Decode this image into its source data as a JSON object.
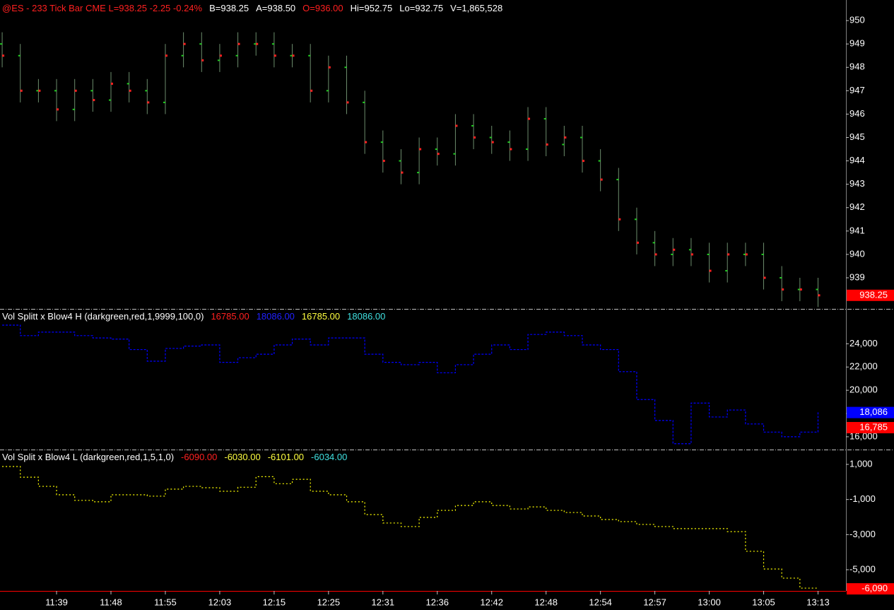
{
  "chart_data": [
    {
      "type": "ohlc",
      "header": [
        {
          "text": "@ES - 233 Tick Bar  CME  L=938.25  -2.25  -0.24%",
          "color": "#ff2020"
        },
        {
          "text": "B=938.25",
          "color": "#ffffff"
        },
        {
          "text": "A=938.50",
          "color": "#ffffff"
        },
        {
          "text": "O=936.00",
          "color": "#ff2020"
        },
        {
          "text": "Hi=952.75",
          "color": "#ffffff"
        },
        {
          "text": "Lo=932.75",
          "color": "#ffffff"
        },
        {
          "text": "V=1,865,528",
          "color": "#ffffff"
        }
      ],
      "x": [
        0,
        5,
        10,
        15,
        20,
        25,
        30,
        35,
        40,
        45,
        50,
        55,
        60,
        65,
        70,
        75,
        80,
        85,
        90,
        95,
        100,
        105,
        110,
        115,
        120,
        125,
        130,
        135,
        140,
        145,
        150,
        155,
        160,
        165,
        170,
        175,
        180,
        185,
        190,
        195,
        200,
        205,
        210,
        215,
        220,
        225
      ],
      "open": [
        949.0,
        948.5,
        947.0,
        947.0,
        946.2,
        947.0,
        946.6,
        947.3,
        947.0,
        946.5,
        948.5,
        949.0,
        948.3,
        948.5,
        949.0,
        949.0,
        948.5,
        948.5,
        947.0,
        948.0,
        946.5,
        944.8,
        944.0,
        943.5,
        944.5,
        944.3,
        945.5,
        945.0,
        944.8,
        944.5,
        945.8,
        944.7,
        945.0,
        944.0,
        943.2,
        941.5,
        940.5,
        940.0,
        940.2,
        940.0,
        939.3,
        940.0,
        940.0,
        939.0,
        938.5,
        938.5
      ],
      "high": [
        949.5,
        949.0,
        947.5,
        947.5,
        947.5,
        947.5,
        947.8,
        947.8,
        947.5,
        949.0,
        949.5,
        949.5,
        949.0,
        949.5,
        949.5,
        949.5,
        949.0,
        949.0,
        948.5,
        948.5,
        947.0,
        945.3,
        944.5,
        945.0,
        945.0,
        946.0,
        946.0,
        945.5,
        945.3,
        946.3,
        946.3,
        945.5,
        945.5,
        944.5,
        943.7,
        942.0,
        941.0,
        940.7,
        940.7,
        940.5,
        940.5,
        940.5,
        940.5,
        939.5,
        939.0,
        939.0
      ],
      "low": [
        948.0,
        946.5,
        946.5,
        945.7,
        945.7,
        946.1,
        946.1,
        946.5,
        946.0,
        946.0,
        948.0,
        947.8,
        947.8,
        948.0,
        948.5,
        948.0,
        948.0,
        946.5,
        946.5,
        946.0,
        944.3,
        943.5,
        943.0,
        943.0,
        943.8,
        943.8,
        944.5,
        944.3,
        944.0,
        944.0,
        944.2,
        944.2,
        943.5,
        942.7,
        941.0,
        940.0,
        939.5,
        939.5,
        939.5,
        938.8,
        938.8,
        939.5,
        938.5,
        938.0,
        938.0,
        937.75
      ],
      "close": [
        948.5,
        947.0,
        947.0,
        946.2,
        947.0,
        946.6,
        947.3,
        947.0,
        946.5,
        948.5,
        949.0,
        948.3,
        948.5,
        949.0,
        949.0,
        948.5,
        948.5,
        947.0,
        948.0,
        946.5,
        944.8,
        944.0,
        943.5,
        944.5,
        944.3,
        945.5,
        945.0,
        944.8,
        944.5,
        945.8,
        944.7,
        945.0,
        944.0,
        943.2,
        941.5,
        940.5,
        940.0,
        940.2,
        940.0,
        939.3,
        940.0,
        940.0,
        939.0,
        938.5,
        938.5,
        938.25
      ],
      "bar_color": "#6c8c6c",
      "open_color": "#22cc22",
      "close_color": "#ff2020",
      "xlim": [
        -0.6,
        232.7
      ],
      "ylim": [
        937.67,
        950.88
      ],
      "yticks": [
        939,
        940,
        941,
        942,
        943,
        944,
        945,
        946,
        947,
        948,
        949,
        950
      ],
      "last_labels": [
        {
          "value": 938.25,
          "label": "938.25",
          "color": "#ff0000"
        }
      ]
    },
    {
      "type": "step",
      "header": [
        {
          "text": "Vol Splitt x Blow4 H (darkgreen,red,1,9999,100,0)",
          "color": "#ffffff"
        },
        {
          "text": "16785.00",
          "color": "#ff2020"
        },
        {
          "text": "18086.00",
          "color": "#2020ff"
        },
        {
          "text": "16785.00",
          "color": "#ffff40"
        },
        {
          "text": "18086.00",
          "color": "#40e0e0"
        }
      ],
      "x": [
        0,
        5,
        10,
        15,
        20,
        25,
        30,
        35,
        40,
        45,
        50,
        55,
        60,
        65,
        70,
        75,
        80,
        85,
        90,
        95,
        100,
        105,
        110,
        115,
        120,
        125,
        130,
        135,
        140,
        145,
        150,
        155,
        160,
        165,
        170,
        175,
        180,
        185,
        190,
        195,
        200,
        205,
        210,
        215,
        220,
        225
      ],
      "values": [
        25600,
        24700,
        25000,
        25000,
        24700,
        24500,
        24400,
        23500,
        22500,
        23600,
        23800,
        23900,
        22400,
        22800,
        23100,
        23900,
        24400,
        23900,
        24500,
        24500,
        23100,
        22400,
        22200,
        22400,
        21500,
        22200,
        23100,
        23900,
        23500,
        24800,
        25000,
        24700,
        23900,
        23500,
        21600,
        19200,
        17400,
        15400,
        18900,
        17700,
        18300,
        17100,
        16400,
        16000,
        16400,
        18200
      ],
      "color": "#0000ff",
      "dashed": false,
      "xlim": [
        -0.6,
        232.7
      ],
      "ylim": [
        14900,
        27000
      ],
      "yticks": [
        {
          "value": 16000,
          "label": "16,000"
        },
        {
          "value": 18000,
          "label": "18,000"
        },
        {
          "value": 20000,
          "label": "20,000"
        },
        {
          "value": 22000,
          "label": "22,000"
        },
        {
          "value": 24000,
          "label": "24,000"
        }
      ],
      "last_labels": [
        {
          "value": 18086,
          "label": "18,086",
          "color": "#0000ff"
        },
        {
          "value": 16785,
          "label": "16,785",
          "color": "#ff0000"
        }
      ]
    },
    {
      "type": "step",
      "header": [
        {
          "text": "Vol Split x Blow4 L (darkgreen,red,1,5,1,0)",
          "color": "#ffffff"
        },
        {
          "text": "-6090.00",
          "color": "#ff2020"
        },
        {
          "text": "-6030.00",
          "color": "#ffff40"
        },
        {
          "text": "-6101.00",
          "color": "#ffff40"
        },
        {
          "text": "-6034.00",
          "color": "#40e0e0"
        }
      ],
      "x": [
        0,
        5,
        10,
        15,
        20,
        25,
        30,
        35,
        40,
        45,
        50,
        55,
        60,
        65,
        70,
        75,
        80,
        85,
        90,
        95,
        100,
        105,
        110,
        115,
        120,
        125,
        130,
        135,
        140,
        145,
        150,
        155,
        160,
        165,
        170,
        175,
        180,
        185,
        190,
        195,
        200,
        205,
        210,
        215,
        220,
        225
      ],
      "values": [
        880,
        270,
        -250,
        -730,
        -1050,
        -1130,
        -730,
        -730,
        -810,
        -410,
        -250,
        -330,
        -530,
        -300,
        300,
        -100,
        150,
        -530,
        -730,
        -1130,
        -1860,
        -2340,
        -2540,
        -2020,
        -1620,
        -1340,
        -1130,
        -1340,
        -1540,
        -1420,
        -1620,
        -1740,
        -1940,
        -2140,
        -2260,
        -2420,
        -2540,
        -2660,
        -2660,
        -2660,
        -2830,
        -3950,
        -4960,
        -5480,
        -6050,
        -6090
      ],
      "color": "#ffff00",
      "dashed": true,
      "xlim": [
        -0.6,
        232.7
      ],
      "ylim": [
        -6208,
        1846
      ],
      "yticks": [
        {
          "value": -5000,
          "label": "-5,000"
        },
        {
          "value": -3000,
          "label": "-3,000"
        },
        {
          "value": -1000,
          "label": "-1,000"
        },
        {
          "value": 1000,
          "label": "1,000"
        }
      ],
      "xticks": [
        {
          "value": 15,
          "label": "11:39"
        },
        {
          "value": 30,
          "label": "11:48"
        },
        {
          "value": 45,
          "label": "11:55"
        },
        {
          "value": 60,
          "label": "12:03"
        },
        {
          "value": 75,
          "label": "12:15"
        },
        {
          "value": 90,
          "label": "12:25"
        },
        {
          "value": 105,
          "label": "12:31"
        },
        {
          "value": 120,
          "label": "12:36"
        },
        {
          "value": 135,
          "label": "12:42"
        },
        {
          "value": 150,
          "label": "12:48"
        },
        {
          "value": 165,
          "label": "12:54"
        },
        {
          "value": 180,
          "label": "12:57"
        },
        {
          "value": 195,
          "label": "13:00"
        },
        {
          "value": 210,
          "label": "13:05"
        },
        {
          "value": 225,
          "label": "13:13"
        }
      ],
      "last_labels": [
        {
          "value": -6090,
          "label": "-6,090",
          "color": "#ff0000"
        }
      ]
    }
  ]
}
